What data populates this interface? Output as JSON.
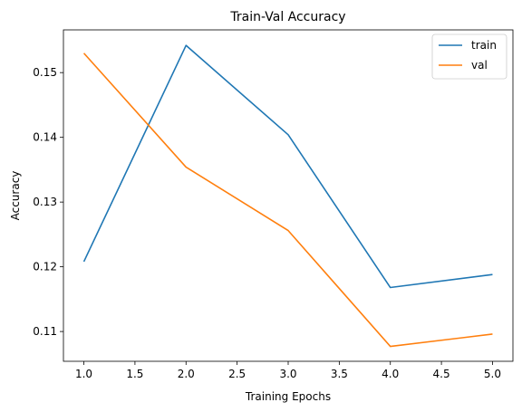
{
  "chart_data": {
    "type": "line",
    "title": "Train-Val Accuracy",
    "xlabel": "Training Epochs",
    "ylabel": "Accuracy",
    "x": [
      1,
      2,
      3,
      4,
      5
    ],
    "series": [
      {
        "name": "train",
        "color": "#1f77b4",
        "values": [
          0.1208,
          0.1542,
          0.1404,
          0.1168,
          0.1188
        ]
      },
      {
        "name": "val",
        "color": "#ff7f0e",
        "values": [
          0.153,
          0.1354,
          0.1256,
          0.1077,
          0.1096
        ]
      }
    ],
    "xlim": [
      0.8,
      5.2
    ],
    "ylim": [
      0.1054,
      0.1566
    ],
    "xticks": [
      1.0,
      1.5,
      2.0,
      2.5,
      3.0,
      3.5,
      4.0,
      4.5,
      5.0
    ],
    "xtick_labels": [
      "1.0",
      "1.5",
      "2.0",
      "2.5",
      "3.0",
      "3.5",
      "4.0",
      "4.5",
      "5.0"
    ],
    "yticks": [
      0.11,
      0.12,
      0.13,
      0.14,
      0.15
    ],
    "ytick_labels": [
      "0.11",
      "0.12",
      "0.13",
      "0.14",
      "0.15"
    ],
    "grid": false,
    "legend_position": "top-right"
  }
}
